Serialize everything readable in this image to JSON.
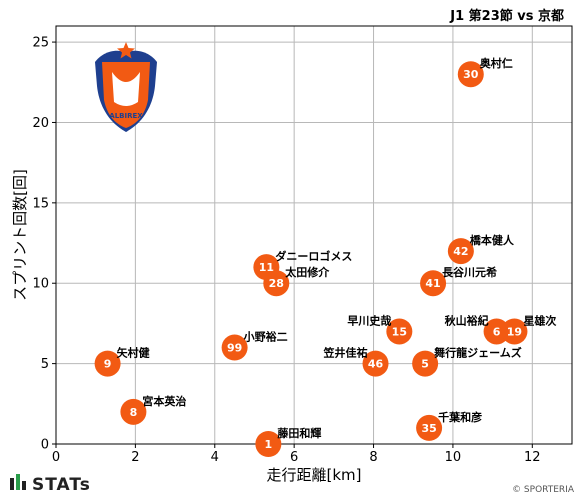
{
  "chart_data": {
    "type": "scatter",
    "title": "J1 第23節 vs 京都",
    "xlabel": "走行距離[km]",
    "ylabel": "スプリント回数[回]",
    "xlim": [
      0,
      13
    ],
    "ylim": [
      0,
      26
    ],
    "xticks": [
      0,
      2,
      4,
      6,
      8,
      10,
      12
    ],
    "yticks": [
      0,
      5,
      10,
      15,
      20,
      25
    ],
    "grid": true,
    "marker_color": "#f25a13",
    "points": [
      {
        "number": "30",
        "name": "奥村仁",
        "x": 10.45,
        "y": 23
      },
      {
        "number": "42",
        "name": "橋本健人",
        "x": 10.2,
        "y": 12
      },
      {
        "number": "41",
        "name": "長谷川元希",
        "x": 9.5,
        "y": 10
      },
      {
        "number": "11",
        "name": "ダニーロゴメス",
        "x": 5.3,
        "y": 11
      },
      {
        "number": "28",
        "name": "太田修介",
        "x": 5.55,
        "y": 10
      },
      {
        "number": "15",
        "name": "早川史哉",
        "x": 8.65,
        "y": 7
      },
      {
        "number": "6",
        "name": "秋山裕紀",
        "x": 11.1,
        "y": 7
      },
      {
        "number": "19",
        "name": "星雄次",
        "x": 11.55,
        "y": 7
      },
      {
        "number": "99",
        "name": "小野裕二",
        "x": 4.5,
        "y": 6
      },
      {
        "number": "46",
        "name": "笠井佳祐",
        "x": 8.05,
        "y": 5
      },
      {
        "number": "5",
        "name": "舞行龍ジェームズ",
        "x": 9.3,
        "y": 5
      },
      {
        "number": "9",
        "name": "矢村健",
        "x": 1.3,
        "y": 5
      },
      {
        "number": "8",
        "name": "宮本英治",
        "x": 1.95,
        "y": 2
      },
      {
        "number": "35",
        "name": "千葉和彦",
        "x": 9.4,
        "y": 1
      },
      {
        "number": "1",
        "name": "藤田和輝",
        "x": 5.35,
        "y": 0
      }
    ]
  },
  "logo": {
    "text": "ALBIREX",
    "primary_color": "#f25a13",
    "secondary_color": "#1e3f8f"
  },
  "footer": {
    "brand": "STATs",
    "credit": "© SPORTERIA"
  }
}
